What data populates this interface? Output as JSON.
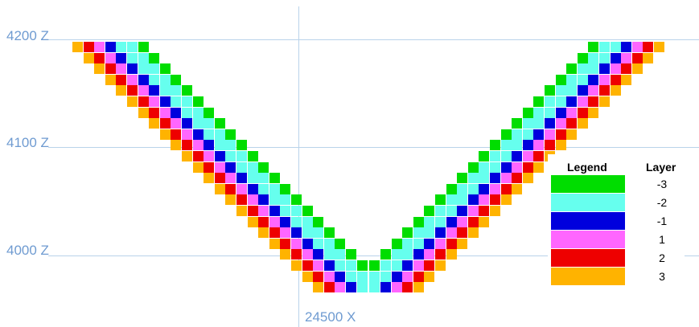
{
  "axes": {
    "z_labels": [
      "4200 Z",
      "4100 Z",
      "4000 Z"
    ],
    "x_label": "24500 X"
  },
  "legend": {
    "title": "Legend",
    "column_header": "Layer",
    "entries": [
      {
        "layer": "-3",
        "color": "#00dd00"
      },
      {
        "layer": "-2",
        "color": "#66ffee"
      },
      {
        "layer": "-1",
        "color": "#0000dd"
      },
      {
        "layer": "1",
        "color": "#ff66ff"
      },
      {
        "layer": "2",
        "color": "#ee0000"
      },
      {
        "layer": "3",
        "color": "#ffb300"
      }
    ]
  },
  "layer_order_outer_to_inner": [
    "3",
    "2",
    "1",
    "-1",
    "-2",
    "-2",
    "-3"
  ]
}
